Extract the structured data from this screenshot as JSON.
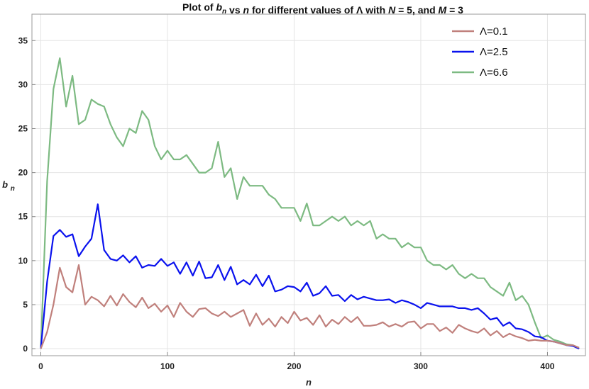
{
  "chart_data": {
    "type": "line",
    "title": {
      "parts": [
        {
          "text": "Plot of ",
          "italic": false
        },
        {
          "text": "b",
          "italic": true
        },
        {
          "text": "n",
          "italic": true,
          "sub": true
        },
        {
          "text": "  vs ",
          "italic": false
        },
        {
          "text": "n",
          "italic": true
        },
        {
          "text": " for different values of Λ with ",
          "italic": false
        },
        {
          "text": "N",
          "italic": true
        },
        {
          "text": " = 5,  and ",
          "italic": false
        },
        {
          "text": "M",
          "italic": true
        },
        {
          "text": " = 3",
          "italic": false
        }
      ]
    },
    "xlabel": "n",
    "ylabel": {
      "base": "b",
      "sub": "n"
    },
    "xlim": [
      -7,
      430
    ],
    "ylim": [
      -0.8,
      38
    ],
    "xticks": [
      0,
      100,
      200,
      300,
      400
    ],
    "yticks": [
      0,
      5,
      10,
      15,
      20,
      25,
      30,
      35
    ],
    "grid": true,
    "legend_position": "top-right",
    "x": [
      0,
      5,
      10,
      15,
      20,
      25,
      30,
      35,
      40,
      45,
      50,
      55,
      60,
      65,
      70,
      75,
      80,
      85,
      90,
      95,
      100,
      105,
      110,
      115,
      120,
      125,
      130,
      135,
      140,
      145,
      150,
      155,
      160,
      165,
      170,
      175,
      180,
      185,
      190,
      195,
      200,
      205,
      210,
      215,
      220,
      225,
      230,
      235,
      240,
      245,
      250,
      255,
      260,
      265,
      270,
      275,
      280,
      285,
      290,
      295,
      300,
      305,
      310,
      315,
      320,
      325,
      330,
      335,
      340,
      345,
      350,
      355,
      360,
      365,
      370,
      375,
      380,
      385,
      390,
      395,
      400,
      405,
      410,
      415,
      420,
      425
    ],
    "series": [
      {
        "name": "Λ=0.1",
        "color": "#c0807c",
        "values": [
          0.0,
          1.9,
          5.0,
          9.2,
          7.0,
          6.4,
          9.5,
          5.0,
          5.9,
          5.5,
          4.8,
          6.0,
          4.9,
          6.2,
          5.3,
          4.7,
          5.8,
          4.6,
          5.1,
          4.2,
          4.9,
          3.6,
          5.2,
          4.2,
          3.6,
          4.5,
          4.6,
          4.0,
          3.7,
          4.2,
          3.6,
          4.0,
          4.4,
          2.6,
          4.0,
          2.7,
          3.4,
          2.5,
          3.6,
          2.9,
          4.2,
          3.2,
          3.5,
          2.7,
          3.8,
          2.5,
          3.3,
          2.8,
          3.6,
          3.0,
          3.6,
          2.6,
          2.6,
          2.7,
          3.0,
          2.5,
          2.8,
          2.5,
          3.0,
          3.1,
          2.3,
          2.8,
          2.8,
          2.0,
          2.4,
          1.8,
          2.7,
          2.3,
          2.0,
          1.8,
          2.3,
          1.5,
          2.0,
          1.3,
          1.7,
          1.4,
          1.2,
          0.9,
          1.0,
          0.9,
          0.9,
          0.8,
          0.6,
          0.4,
          0.4,
          0.1
        ]
      },
      {
        "name": "Λ=2.5",
        "color": "#0a12ee",
        "values": [
          0.0,
          7.6,
          12.8,
          13.5,
          12.7,
          13.0,
          10.5,
          11.6,
          12.5,
          16.4,
          11.2,
          10.2,
          10.0,
          10.6,
          9.8,
          10.5,
          9.2,
          9.5,
          9.4,
          10.2,
          9.4,
          9.8,
          8.5,
          9.8,
          8.3,
          9.9,
          8.0,
          8.1,
          9.5,
          7.8,
          9.3,
          7.3,
          7.8,
          7.3,
          8.4,
          7.1,
          8.3,
          6.5,
          6.7,
          7.1,
          7.0,
          6.5,
          7.5,
          6.0,
          6.3,
          7.1,
          6.0,
          6.1,
          5.4,
          6.1,
          5.6,
          5.9,
          5.7,
          5.5,
          5.5,
          5.6,
          5.2,
          5.5,
          5.3,
          5.0,
          4.6,
          5.2,
          5.0,
          4.8,
          4.8,
          4.8,
          4.6,
          4.6,
          4.4,
          4.6,
          4.0,
          3.3,
          3.5,
          2.6,
          3.0,
          2.3,
          2.2,
          1.9,
          1.4,
          1.3,
          0.9,
          0.8,
          0.6,
          0.4,
          0.3,
          0.0
        ]
      },
      {
        "name": "Λ=6.6",
        "color": "#7dba82",
        "values": [
          0.0,
          19.0,
          29.5,
          33.0,
          27.5,
          31.0,
          25.5,
          26.0,
          28.3,
          27.8,
          27.5,
          25.5,
          24.0,
          23.0,
          25.0,
          24.5,
          27.0,
          26.0,
          23.0,
          21.5,
          22.5,
          21.5,
          21.5,
          22.0,
          21.0,
          20.0,
          20.0,
          20.5,
          23.5,
          19.5,
          20.5,
          17.0,
          19.5,
          18.5,
          18.5,
          18.5,
          17.5,
          17.0,
          16.0,
          16.0,
          16.0,
          14.5,
          16.5,
          14.0,
          14.0,
          14.5,
          15.0,
          14.5,
          15.0,
          14.0,
          14.5,
          14.0,
          14.5,
          12.5,
          13.0,
          12.5,
          12.5,
          11.5,
          12.0,
          11.5,
          11.5,
          10.0,
          9.5,
          9.5,
          9.0,
          9.5,
          8.5,
          8.0,
          8.5,
          8.0,
          8.0,
          7.0,
          6.5,
          6.0,
          7.5,
          5.5,
          6.0,
          5.0,
          3.0,
          1.2,
          1.5,
          1.0,
          0.8,
          0.5,
          0.4,
          0.0
        ]
      }
    ]
  }
}
